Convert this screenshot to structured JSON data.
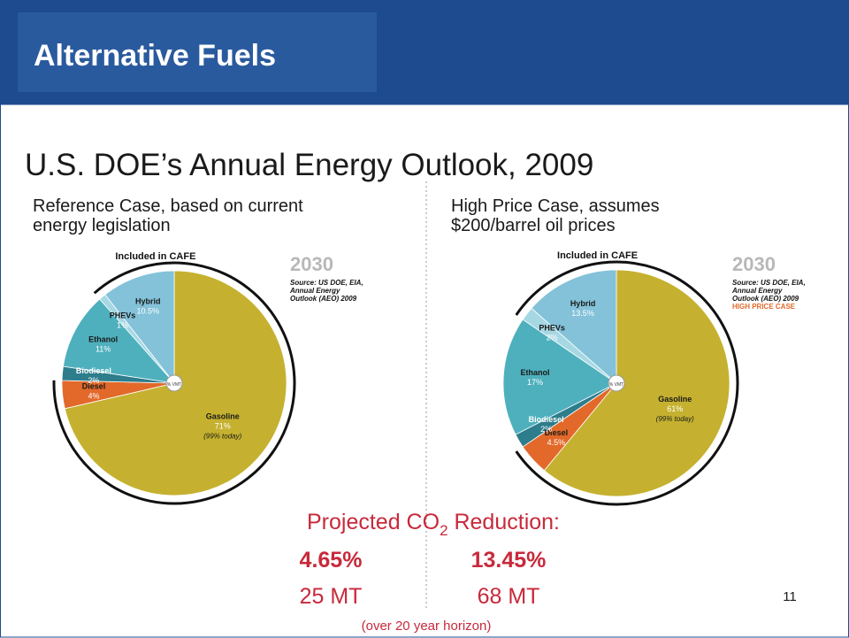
{
  "slide": {
    "title": "Alternative Fuels",
    "subtitle": "U.S. DOE’s Annual Energy Outlook, 2009",
    "left_caption": [
      "Reference Case, based on current",
      "energy legislation"
    ],
    "right_caption": [
      "High Price Case, assumes",
      "$200/barrel oil prices"
    ],
    "reduction": {
      "prefix": "Projected CO",
      "subscript": "2",
      "suffix": " Reduction:"
    },
    "left_result": {
      "percent": "4.65%",
      "amount": "25 MT"
    },
    "right_result": {
      "percent": "13.45%",
      "amount": "68 MT"
    },
    "horizon": "(over 20 year horizon)",
    "page_number": "11"
  },
  "chart_data": [
    {
      "type": "pie",
      "year": "2030",
      "center_label": "% VMT",
      "arc_label": "Included in CAFE",
      "source": [
        "Source: US DOE, EIA,",
        "Annual Energy",
        "Outlook (AEO) 2009"
      ],
      "categories": [
        "Gasoline",
        "Diesel",
        "Biodiesel",
        "Ethanol",
        "PHEVs",
        "Hybrid"
      ],
      "values": [
        71,
        4,
        2,
        11,
        1,
        10.5
      ],
      "value_labels": [
        "71%",
        "4%",
        "2%",
        "11%",
        "1%",
        "10.5%"
      ],
      "annotation": "(99% today)",
      "colors": [
        "#c5b12f",
        "#e2692a",
        "#2d7d8c",
        "#4eb0bd",
        "#a6d8e4",
        "#83c2d9"
      ]
    },
    {
      "type": "pie",
      "year": "2030",
      "center_label": "% VMT",
      "arc_label": "Included in CAFE",
      "source": [
        "Source: US DOE, EIA,",
        "Annual Energy",
        "Outlook (AEO) 2009"
      ],
      "case_label": "HIGH PRICE CASE",
      "categories": [
        "Gasoline",
        "Diesel",
        "Biodiesel",
        "Ethanol",
        "PHEVs",
        "Hybrid"
      ],
      "values": [
        61,
        4.5,
        2,
        17,
        2,
        13.5
      ],
      "value_labels": [
        "61%",
        "4.5%",
        "2%",
        "17%",
        "2%",
        "13.5%"
      ],
      "annotation": "(99% today)",
      "colors": [
        "#c5b12f",
        "#e2692a",
        "#2d7d8c",
        "#4eb0bd",
        "#a6d8e4",
        "#83c2d9"
      ]
    }
  ]
}
